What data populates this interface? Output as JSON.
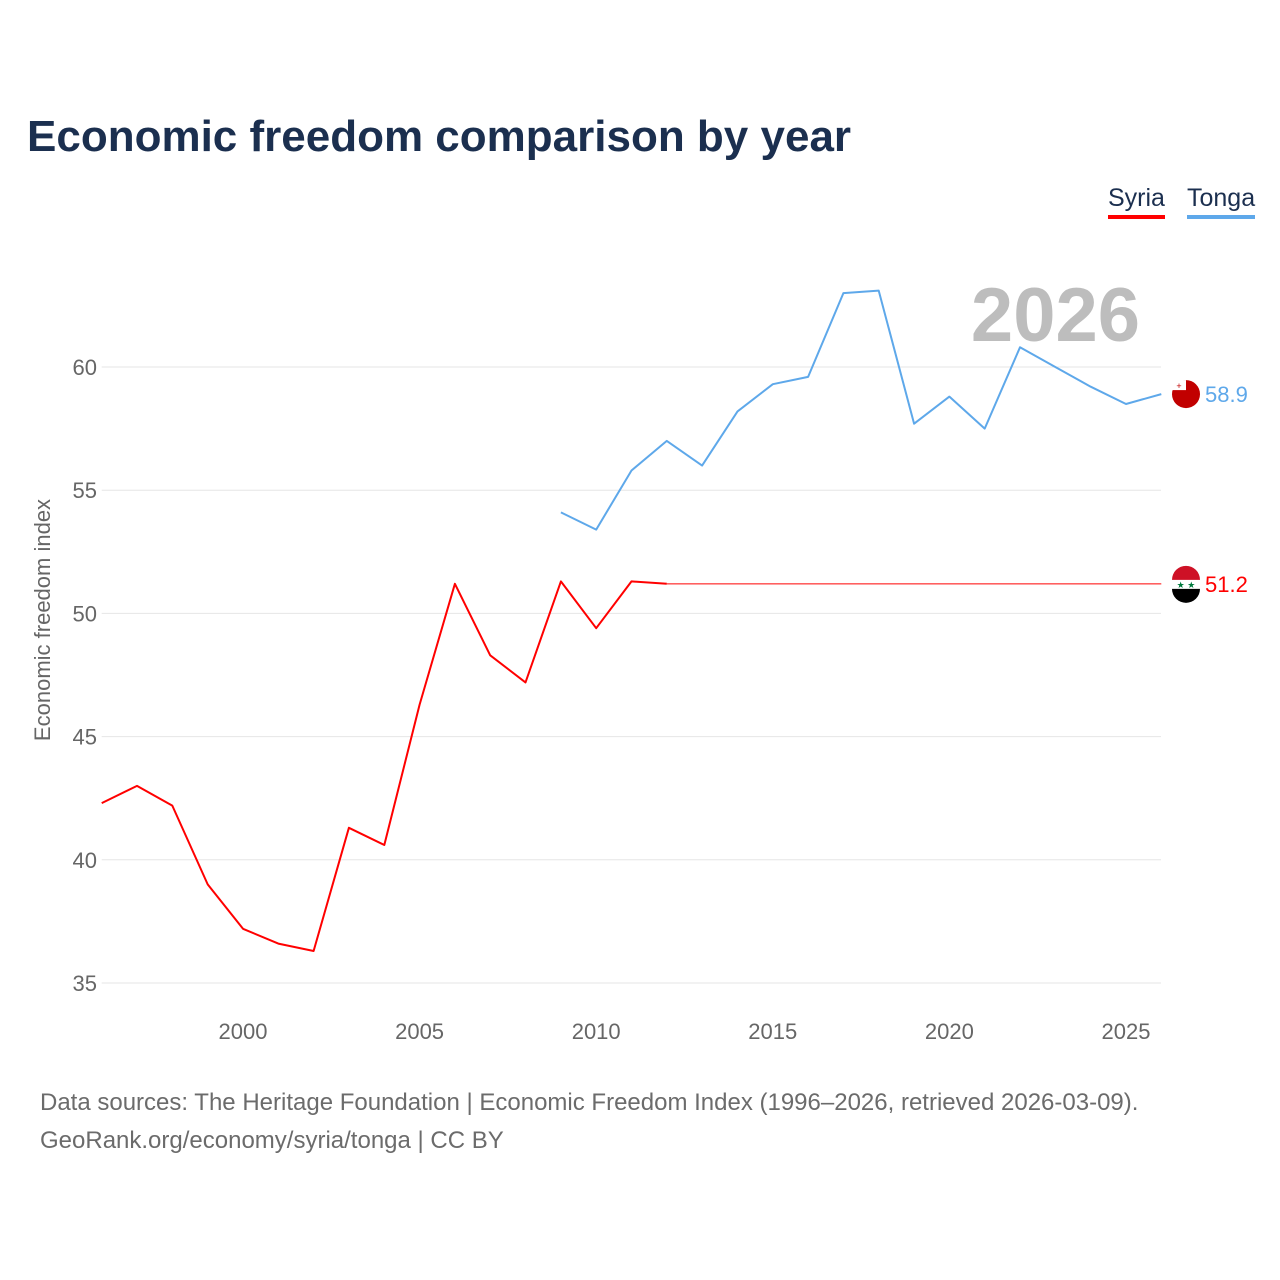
{
  "chart_data": {
    "type": "line",
    "title": "Economic freedom comparison by year",
    "xlabel": "",
    "ylabel": "Economic freedom index",
    "xlim": [
      1996,
      2026
    ],
    "ylim": [
      35,
      60
    ],
    "yticks": [
      35,
      40,
      45,
      50,
      55,
      60
    ],
    "xticks": [
      2000,
      2005,
      2010,
      2015,
      2020,
      2025
    ],
    "grid": true,
    "legend_position": "top-right",
    "year_label": "2026",
    "series": [
      {
        "name": "Syria",
        "color": "#ff0000",
        "x": [
          1996,
          1997,
          1998,
          1999,
          2000,
          2001,
          2002,
          2003,
          2004,
          2005,
          2006,
          2007,
          2008,
          2009,
          2010,
          2011,
          2012
        ],
        "values": [
          42.3,
          43.0,
          42.2,
          39.0,
          37.2,
          36.6,
          36.3,
          41.3,
          40.6,
          46.3,
          51.2,
          48.3,
          47.2,
          51.3,
          49.4,
          51.3,
          51.2
        ],
        "carried_forward_to": 2026,
        "end_label": "51.2"
      },
      {
        "name": "Tonga",
        "color": "#5ea8ea",
        "x": [
          2009,
          2010,
          2011,
          2012,
          2013,
          2014,
          2015,
          2016,
          2017,
          2018,
          2019,
          2020,
          2021,
          2022,
          2023,
          2024,
          2025,
          2026
        ],
        "values": [
          54.1,
          53.4,
          55.8,
          57.0,
          56.0,
          58.2,
          59.3,
          59.6,
          63.0,
          63.1,
          57.7,
          58.8,
          57.5,
          60.8,
          60.0,
          59.2,
          58.5,
          58.9
        ],
        "end_label": "58.9"
      }
    ]
  },
  "footer": {
    "sources": "Data sources: The Heritage Foundation | Economic Freedom Index (1996–2026, retrieved 2026-03-09).",
    "credit": "GeoRank.org/economy/syria/tonga | CC BY"
  }
}
